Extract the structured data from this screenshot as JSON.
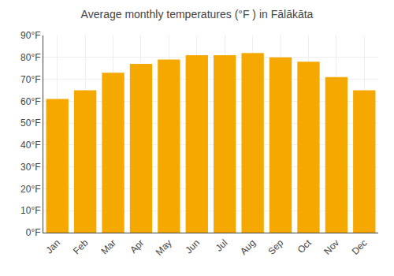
{
  "chart_data": {
    "type": "bar",
    "title": "Average monthly temperatures (°F ) in Fālākāta",
    "categories": [
      "Jan",
      "Feb",
      "Mar",
      "Apr",
      "May",
      "Jun",
      "Jul",
      "Aug",
      "Sep",
      "Oct",
      "Nov",
      "Dec"
    ],
    "values": [
      61,
      65,
      73,
      77,
      79,
      81,
      81,
      82,
      80,
      78,
      71,
      65
    ],
    "color": "#F5A800",
    "ylim": [
      0,
      90
    ],
    "yticks": [
      {
        "value": 0,
        "label": "0°F"
      },
      {
        "value": 10,
        "label": "10°F"
      },
      {
        "value": 20,
        "label": "20°F"
      },
      {
        "value": 30,
        "label": "30°F"
      },
      {
        "value": 40,
        "label": "40°F"
      },
      {
        "value": 50,
        "label": "50°F"
      },
      {
        "value": 60,
        "label": "60°F"
      },
      {
        "value": 70,
        "label": "70°F"
      },
      {
        "value": 80,
        "label": "80°F"
      },
      {
        "value": 90,
        "label": "90°F"
      }
    ],
    "grid": true
  }
}
